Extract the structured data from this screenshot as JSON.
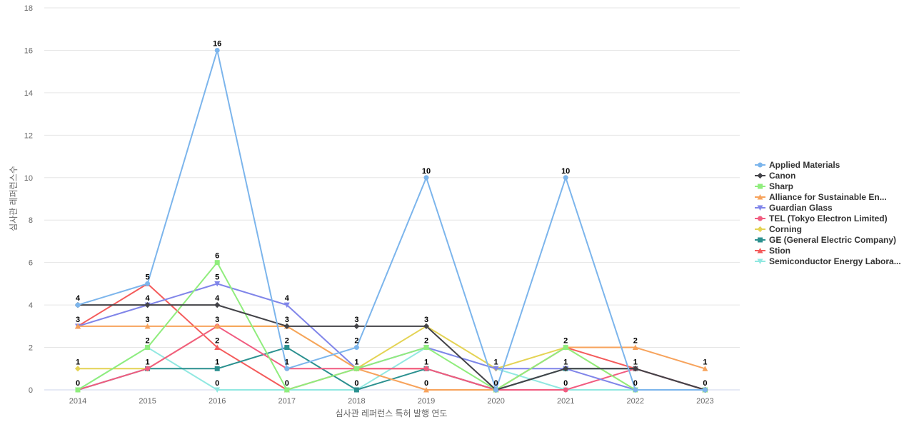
{
  "chart_data": {
    "type": "line",
    "title": "",
    "xlabel": "심사관 레퍼런스 특허 발행 연도",
    "ylabel": "심사관 레퍼런스수",
    "x": [
      "2014",
      "2015",
      "2016",
      "2017",
      "2018",
      "2019",
      "2020",
      "2021",
      "2022",
      "2023"
    ],
    "ylim": [
      0,
      18
    ],
    "yticks": [
      0,
      2,
      4,
      6,
      8,
      10,
      12,
      14,
      16,
      18
    ],
    "grid": true,
    "legend_position": "right",
    "series": [
      {
        "name": "Applied Materials",
        "color": "#7cb5ec",
        "marker": "circle",
        "values": [
          4,
          5,
          16,
          1,
          2,
          10,
          0,
          10,
          0,
          0
        ]
      },
      {
        "name": "Canon",
        "color": "#434348",
        "marker": "diamond",
        "values": [
          4,
          4,
          4,
          3,
          3,
          3,
          0,
          1,
          1,
          0
        ]
      },
      {
        "name": "Sharp",
        "color": "#90ed7d",
        "marker": "square",
        "values": [
          0,
          2,
          6,
          0,
          1,
          2,
          0,
          2,
          0,
          0
        ]
      },
      {
        "name": "Alliance for Sustainable En...",
        "color": "#f7a35c",
        "marker": "triangle",
        "values": [
          3,
          3,
          3,
          3,
          1,
          0,
          0,
          2,
          2,
          1
        ]
      },
      {
        "name": "Guardian Glass",
        "color": "#8085e9",
        "marker": "triangle-down",
        "values": [
          3,
          4,
          5,
          4,
          1,
          2,
          1,
          1,
          0,
          0
        ]
      },
      {
        "name": "TEL (Tokyo Electron Limited)",
        "color": "#f15c80",
        "marker": "circle",
        "values": [
          0,
          1,
          3,
          1,
          1,
          1,
          0,
          0,
          1,
          0
        ]
      },
      {
        "name": "Corning",
        "color": "#e4d354",
        "marker": "diamond",
        "values": [
          1,
          1,
          3,
          3,
          1,
          3,
          1,
          2,
          0,
          0
        ]
      },
      {
        "name": "GE (General Electric Company)",
        "color": "#2b908f",
        "marker": "square",
        "values": [
          0,
          1,
          1,
          2,
          0,
          1,
          0,
          1,
          1,
          0
        ]
      },
      {
        "name": "Stion",
        "color": "#f45b5b",
        "marker": "triangle",
        "values": [
          3,
          5,
          2,
          0,
          1,
          1,
          0,
          2,
          1,
          0
        ]
      },
      {
        "name": "Semiconductor Energy Labora...",
        "color": "#91e8e1",
        "marker": "triangle-down",
        "values": [
          0,
          2,
          0,
          0,
          0,
          2,
          1,
          0,
          0,
          0
        ]
      }
    ],
    "data_labels": [
      {
        "x": "2014",
        "labels": [
          "4",
          "3",
          "1",
          "0"
        ]
      },
      {
        "x": "2015",
        "labels": [
          "5",
          "4",
          "3",
          "2",
          "1"
        ]
      },
      {
        "x": "2016",
        "labels": [
          "16",
          "6",
          "5",
          "4",
          "3",
          "2",
          "1",
          "0"
        ]
      },
      {
        "x": "2017",
        "labels": [
          "4",
          "3",
          "2",
          "1",
          "0"
        ]
      },
      {
        "x": "2018",
        "labels": [
          "3",
          "2",
          "1",
          "0"
        ]
      },
      {
        "x": "2019",
        "labels": [
          "10",
          "3",
          "2",
          "1",
          "0"
        ]
      },
      {
        "x": "2020",
        "labels": [
          "1",
          "0"
        ]
      },
      {
        "x": "2021",
        "labels": [
          "10",
          "2",
          "1",
          "0"
        ]
      },
      {
        "x": "2022",
        "labels": [
          "2",
          "1",
          "0"
        ]
      },
      {
        "x": "2023",
        "labels": [
          "1",
          "0"
        ]
      }
    ]
  }
}
